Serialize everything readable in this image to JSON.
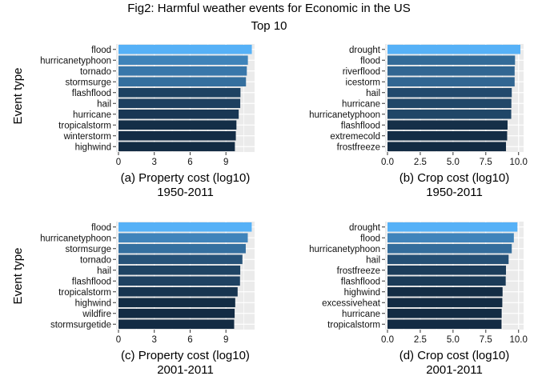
{
  "title": "Fig2: Harmful weather events for Economic in the US",
  "subtitle": "Top 10",
  "colors": {
    "panel_bg": "#ebebeb",
    "grid": "#ffffff",
    "bar_dark": "#132b43",
    "bar_light": "#56b1f7"
  },
  "chart_data": [
    {
      "type": "bar",
      "orientation": "horizontal",
      "ylabel": "Event type",
      "xlabel": "(a) Property cost (log10)",
      "period": "1950-2011",
      "xlim": [
        0,
        11.2
      ],
      "xticks": [
        "0",
        "3",
        "6",
        "9"
      ],
      "xtick_values": [
        0,
        3,
        6,
        9
      ],
      "categories": [
        "flood",
        "hurricanetyphoon",
        "tornado",
        "stormsurge",
        "flashflood",
        "hail",
        "hurricane",
        "tropicalstorm",
        "winterstorm",
        "highwind"
      ],
      "values": [
        11.17,
        10.84,
        10.75,
        10.68,
        10.22,
        10.2,
        10.07,
        9.88,
        9.83,
        9.75
      ]
    },
    {
      "type": "bar",
      "orientation": "horizontal",
      "ylabel": "",
      "xlabel": "(b) Crop cost (log10)",
      "period": "1950-2011",
      "xlim": [
        0,
        10.2
      ],
      "xticks": [
        "0.0",
        "2.5",
        "5.0",
        "7.5",
        "10.0"
      ],
      "xtick_values": [
        0,
        2.5,
        5,
        7.5,
        10
      ],
      "categories": [
        "drought",
        "flood",
        "riverflood",
        "icestorm",
        "hail",
        "hurricane",
        "hurricanetyphoon",
        "flashflood",
        "extremecold",
        "frostfreeze"
      ],
      "values": [
        10.14,
        9.73,
        9.7,
        9.7,
        9.48,
        9.45,
        9.44,
        9.16,
        9.13,
        9.04
      ]
    },
    {
      "type": "bar",
      "orientation": "horizontal",
      "ylabel": "Event type",
      "xlabel": "(c) Property cost (log10)",
      "period": "2001-2011",
      "xlim": [
        0,
        11.2
      ],
      "xticks": [
        "0",
        "3",
        "6",
        "9"
      ],
      "xtick_values": [
        0,
        3,
        6,
        9
      ],
      "categories": [
        "flood",
        "hurricanetyphoon",
        "stormsurge",
        "tornado",
        "hail",
        "flashflood",
        "tropicalstorm",
        "highwind",
        "wildfire",
        "stormsurgetide"
      ],
      "values": [
        11.16,
        10.83,
        10.66,
        10.38,
        10.2,
        10.18,
        9.98,
        9.78,
        9.73,
        9.69
      ]
    },
    {
      "type": "bar",
      "orientation": "horizontal",
      "ylabel": "",
      "xlabel": "(d) Crop cost (log10)",
      "period": "2001-2011",
      "xlim": [
        0,
        10.2
      ],
      "xticks": [
        "0.0",
        "2.5",
        "5.0",
        "7.5",
        "10.0"
      ],
      "xtick_values": [
        0,
        2.5,
        5,
        7.5,
        10
      ],
      "categories": [
        "drought",
        "flood",
        "hurricanetyphoon",
        "hail",
        "frostfreeze",
        "flashflood",
        "highwind",
        "excessiveheat",
        "hurricane",
        "tropicalstorm"
      ],
      "values": [
        9.91,
        9.64,
        9.48,
        9.24,
        9.04,
        9.02,
        8.78,
        8.76,
        8.71,
        8.7
      ]
    }
  ]
}
